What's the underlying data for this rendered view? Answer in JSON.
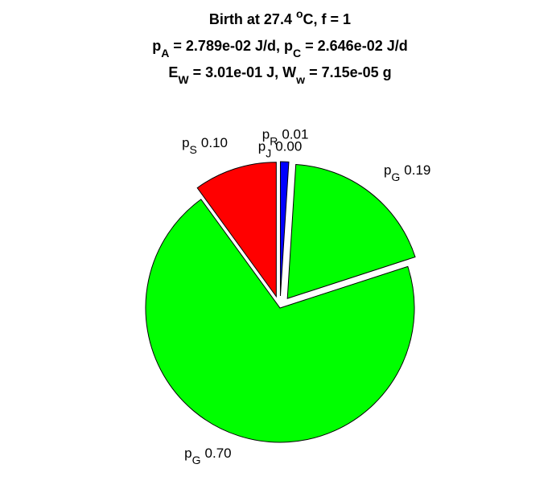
{
  "chart_data": {
    "type": "pie",
    "title_lines": [
      [
        {
          "text": "Birth at 27.4 "
        },
        {
          "text": "o",
          "sup": true
        },
        {
          "text": "C, f = 1"
        }
      ],
      [
        {
          "text": "p"
        },
        {
          "text": "A",
          "sub": true
        },
        {
          "text": " = 2.789e-02 J/d, p"
        },
        {
          "text": "C",
          "sub": true
        },
        {
          "text": " = 2.646e-02 J/d"
        }
      ],
      [
        {
          "text": "E"
        },
        {
          "text": "W",
          "sub": true
        },
        {
          "text": " = 3.01e-01 J, W"
        },
        {
          "text": "w",
          "sub": true
        },
        {
          "text": " = 7.15e-05 g"
        }
      ]
    ],
    "slices": [
      {
        "base": "p",
        "sub": "J",
        "value": 0.0,
        "value_label": "0.00",
        "color": "#0000ff",
        "explode": false
      },
      {
        "base": "p",
        "sub": "R",
        "value": 0.01,
        "value_label": "0.01",
        "color": "#0000ff",
        "explode": true
      },
      {
        "base": "p",
        "sub": "G",
        "value": 0.19,
        "value_label": "0.19",
        "color": "#00ff00",
        "explode": true
      },
      {
        "base": "p",
        "sub": "G",
        "value": 0.7,
        "value_label": "0.70",
        "color": "#00ff00",
        "explode": false
      },
      {
        "base": "p",
        "sub": "S",
        "value": 0.1,
        "value_label": "0.10",
        "color": "#ff0000",
        "explode": true
      }
    ]
  }
}
